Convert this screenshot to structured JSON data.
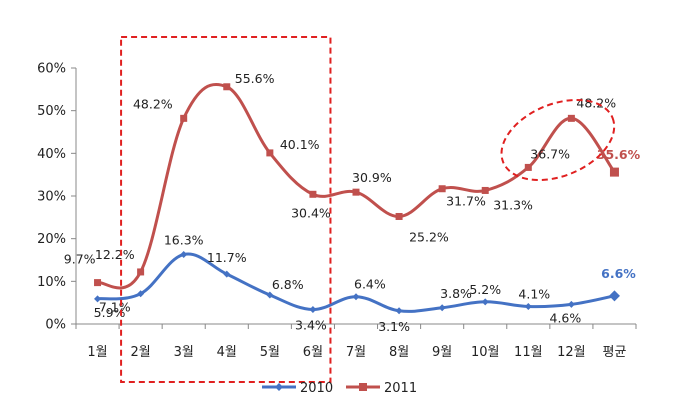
{
  "chart_data": {
    "type": "line",
    "categories": [
      "1월",
      "2월",
      "3월",
      "4월",
      "5월",
      "6월",
      "7월",
      "8월",
      "9월",
      "10월",
      "11월",
      "12월",
      "평균"
    ],
    "ylim": [
      0,
      60
    ],
    "yticks": [
      "0%",
      "10%",
      "20%",
      "30%",
      "40%",
      "50%",
      "60%"
    ],
    "grid": false,
    "legend_position": "bottom",
    "series": [
      {
        "name": "2010",
        "color": "#4472C4",
        "values": [
          5.9,
          7.1,
          16.3,
          11.7,
          6.8,
          3.4,
          6.4,
          3.1,
          3.8,
          5.2,
          4.1,
          4.6,
          6.6
        ],
        "labels": [
          "5.9%",
          "7.1%",
          "16.3%",
          "11.7%",
          "6.8%",
          "3.4%",
          "6.4%",
          "3.1%",
          "3.8%",
          "5.2%",
          "4.1%",
          "4.6%",
          "6.6%"
        ]
      },
      {
        "name": "2011",
        "color": "#C0504D",
        "values": [
          9.7,
          12.2,
          48.2,
          55.6,
          40.1,
          30.4,
          30.9,
          25.2,
          31.7,
          31.3,
          36.7,
          48.2,
          35.6
        ],
        "labels": [
          "9.7%",
          "12.2%",
          "48.2%",
          "55.6%",
          "40.1%",
          "30.4%",
          "30.9%",
          "25.2%",
          "31.7%",
          "31.3%",
          "36.7%",
          "48.2%",
          "35.6%"
        ]
      }
    ],
    "highlights": [
      {
        "shape": "rectangle",
        "from_category": "2월",
        "to_category": "6월",
        "color": "#E02020"
      },
      {
        "shape": "ellipse",
        "from_category": "11월",
        "to_category": "12월",
        "color": "#E02020"
      }
    ]
  }
}
